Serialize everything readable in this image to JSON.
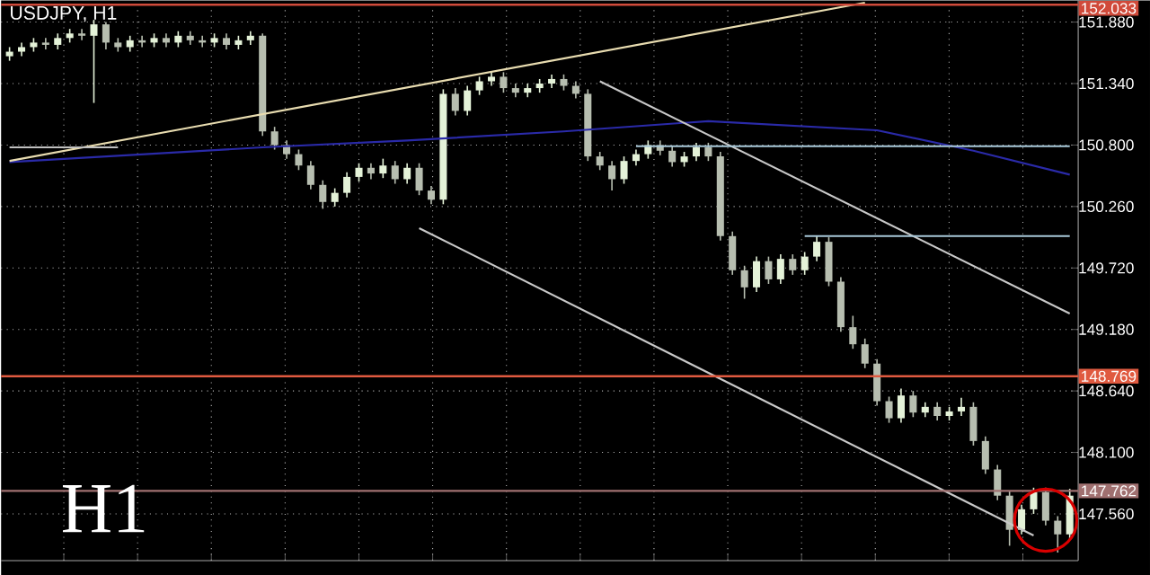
{
  "chart_data": {
    "type": "candlestick",
    "title": "USDJPY, H1",
    "annotations": [
      "H1"
    ],
    "colors": [
      "#e4f2d8",
      "#e4f2d8",
      "#e4f2d8",
      "#b7beb0",
      "#e4f2d8",
      "#e4f2d8",
      "#b7beb0",
      "#e4f2d8",
      "#b7beb0",
      "#b7beb0",
      "#e4f2d8",
      "#b7beb0",
      "#e4f2d8",
      "#b7beb0",
      "#e4f2d8",
      "#b7beb0",
      "#b7beb0",
      "#e4f2d8",
      "#b7beb0",
      "#e4f2d8",
      "#e4f2d8",
      "#b7beb0",
      "#b7beb0",
      "#b7beb0",
      "#b7beb0",
      "#b7beb0",
      "#b7beb0",
      "#e4f2d8",
      "#e4f2d8",
      "#e4f2d8",
      "#b7beb0",
      "#e4f2d8",
      "#b7beb0",
      "#e4f2d8",
      "#b7beb0",
      "#b7beb0",
      "#e4f2d8",
      "#b7beb0",
      "#e4f2d8",
      "#e4f2d8",
      "#e4f2d8",
      "#b7beb0",
      "#b7beb0",
      "#e4f2d8",
      "#e4f2d8",
      "#e4f2d8",
      "#b7beb0",
      "#b7beb0",
      "#b7beb0",
      "#b7beb0",
      "#b7beb0",
      "#e4f2d8",
      "#e4f2d8",
      "#e4f2d8",
      "#b7beb0",
      "#b7beb0",
      "#e4f2d8",
      "#e4f2d8",
      "#b7beb0",
      "#b7beb0",
      "#b7beb0",
      "#b7beb0",
      "#e4f2d8",
      "#b7beb0",
      "#e4f2d8",
      "#b7beb0",
      "#e4f2d8",
      "#e4f2d8",
      "#b7beb0",
      "#b7beb0",
      "#b7beb0",
      "#b7beb0",
      "#b7beb0",
      "#b7beb0",
      "#e4f2d8",
      "#b7beb0",
      "#e4f2d8",
      "#b7beb0",
      "#e4f2d8",
      "#e4f2d8",
      "#b7beb0",
      "#b7beb0",
      "#b7beb0",
      "#b7beb0",
      "#e4f2d8",
      "#e4f2d8",
      "#b7beb0",
      "#b7beb0",
      "#e4f2d8"
    ],
    "categories": [
      null,
      null,
      null,
      null,
      null,
      null,
      null,
      null,
      null,
      null,
      null,
      null,
      null,
      null,
      null,
      null,
      null,
      null,
      null,
      null,
      null,
      null,
      null,
      null,
      null,
      null,
      null,
      null,
      null,
      null,
      null,
      null,
      null,
      null,
      null,
      null,
      null,
      null,
      null,
      null,
      null,
      null,
      null,
      null,
      null,
      null,
      null,
      null,
      null,
      null,
      null,
      null,
      null,
      null,
      null,
      null,
      null,
      null,
      null,
      null,
      null,
      null,
      null,
      null,
      null,
      null,
      null,
      null,
      null,
      null,
      null,
      null,
      null,
      null,
      null,
      null,
      null,
      null,
      null,
      null,
      null,
      null,
      null,
      null,
      null,
      null,
      null,
      null,
      null
    ],
    "ohlc": [
      [
        151.58,
        151.66,
        151.54,
        151.62
      ],
      [
        151.62,
        151.7,
        151.58,
        151.66
      ],
      [
        151.66,
        151.74,
        151.62,
        151.7
      ],
      [
        151.7,
        151.74,
        151.64,
        151.68
      ],
      [
        151.68,
        151.78,
        151.64,
        151.74
      ],
      [
        151.74,
        151.82,
        151.7,
        151.78
      ],
      [
        151.78,
        151.82,
        151.72,
        151.76
      ],
      [
        151.76,
        151.9,
        151.17,
        151.86
      ],
      [
        151.86,
        151.88,
        151.64,
        151.7
      ],
      [
        151.7,
        151.74,
        151.62,
        151.66
      ],
      [
        151.66,
        151.76,
        151.62,
        151.72
      ],
      [
        151.72,
        151.76,
        151.66,
        151.7
      ],
      [
        151.7,
        151.78,
        151.66,
        151.74
      ],
      [
        151.74,
        151.78,
        151.66,
        151.7
      ],
      [
        151.7,
        151.8,
        151.66,
        151.76
      ],
      [
        151.76,
        151.8,
        151.68,
        151.72
      ],
      [
        151.72,
        151.76,
        151.66,
        151.7
      ],
      [
        151.7,
        151.78,
        151.66,
        151.74
      ],
      [
        151.74,
        151.78,
        151.64,
        151.68
      ],
      [
        151.68,
        151.76,
        151.64,
        151.72
      ],
      [
        151.72,
        151.8,
        151.68,
        151.76
      ],
      [
        151.76,
        151.78,
        150.88,
        150.92
      ],
      [
        150.92,
        150.96,
        150.76,
        150.8
      ],
      [
        150.8,
        150.84,
        150.68,
        150.72
      ],
      [
        150.72,
        150.76,
        150.58,
        150.62
      ],
      [
        150.62,
        150.66,
        150.41,
        150.45
      ],
      [
        150.45,
        150.49,
        150.24,
        150.3
      ],
      [
        150.3,
        150.42,
        150.26,
        150.38
      ],
      [
        150.38,
        150.56,
        150.34,
        150.52
      ],
      [
        150.52,
        150.64,
        150.48,
        150.6
      ],
      [
        150.6,
        150.64,
        150.5,
        150.55
      ],
      [
        150.55,
        150.68,
        150.51,
        150.62
      ],
      [
        150.62,
        150.66,
        150.46,
        150.5
      ],
      [
        150.5,
        150.64,
        150.46,
        150.6
      ],
      [
        150.6,
        150.64,
        150.36,
        150.4
      ],
      [
        150.4,
        150.44,
        150.28,
        150.32
      ],
      [
        150.32,
        151.29,
        150.28,
        151.25
      ],
      [
        151.25,
        151.3,
        151.06,
        151.1
      ],
      [
        151.1,
        151.32,
        151.06,
        151.28
      ],
      [
        151.28,
        151.4,
        151.24,
        151.36
      ],
      [
        151.36,
        151.44,
        151.32,
        151.4
      ],
      [
        151.4,
        151.44,
        151.26,
        151.3
      ],
      [
        151.3,
        151.34,
        151.22,
        151.26
      ],
      [
        151.26,
        151.34,
        151.22,
        151.3
      ],
      [
        151.3,
        151.38,
        151.26,
        151.34
      ],
      [
        151.34,
        151.42,
        151.3,
        151.38
      ],
      [
        151.38,
        151.42,
        151.28,
        151.32
      ],
      [
        151.32,
        151.36,
        151.21,
        151.25
      ],
      [
        151.25,
        151.29,
        150.66,
        150.7
      ],
      [
        150.7,
        150.74,
        150.58,
        150.62
      ],
      [
        150.62,
        150.66,
        150.4,
        150.5
      ],
      [
        150.5,
        150.7,
        150.46,
        150.66
      ],
      [
        150.66,
        150.76,
        150.62,
        150.72
      ],
      [
        150.72,
        150.84,
        150.68,
        150.8
      ],
      [
        150.8,
        150.84,
        150.71,
        150.75
      ],
      [
        150.75,
        150.79,
        150.61,
        150.65
      ],
      [
        150.65,
        150.74,
        150.61,
        150.7
      ],
      [
        150.7,
        150.82,
        150.66,
        150.78
      ],
      [
        150.78,
        150.82,
        150.66,
        150.7
      ],
      [
        150.7,
        150.74,
        149.96,
        150.0
      ],
      [
        150.0,
        150.04,
        149.66,
        149.7
      ],
      [
        149.7,
        149.74,
        149.45,
        149.55
      ],
      [
        149.55,
        149.82,
        149.51,
        149.78
      ],
      [
        149.78,
        149.82,
        149.58,
        149.62
      ],
      [
        149.62,
        149.84,
        149.58,
        149.8
      ],
      [
        149.8,
        149.84,
        149.66,
        149.7
      ],
      [
        149.7,
        149.86,
        149.66,
        149.82
      ],
      [
        149.82,
        150.0,
        149.78,
        149.95
      ],
      [
        149.95,
        149.99,
        149.56,
        149.6
      ],
      [
        149.6,
        149.64,
        149.16,
        149.2
      ],
      [
        149.2,
        149.3,
        149.01,
        149.05
      ],
      [
        149.05,
        149.1,
        148.84,
        148.88
      ],
      [
        148.88,
        148.92,
        148.51,
        148.55
      ],
      [
        148.55,
        148.59,
        148.36,
        148.4
      ],
      [
        148.4,
        148.66,
        148.36,
        148.6
      ],
      [
        148.6,
        148.64,
        148.41,
        148.45
      ],
      [
        148.45,
        148.54,
        148.41,
        148.5
      ],
      [
        148.5,
        148.54,
        148.38,
        148.42
      ],
      [
        148.42,
        148.5,
        148.38,
        148.46
      ],
      [
        148.46,
        148.58,
        148.42,
        148.5
      ],
      [
        148.5,
        148.54,
        148.16,
        148.2
      ],
      [
        148.2,
        148.24,
        147.91,
        147.95
      ],
      [
        147.95,
        147.99,
        147.68,
        147.72
      ],
      [
        147.72,
        147.76,
        147.28,
        147.42
      ],
      [
        147.42,
        147.64,
        147.38,
        147.6
      ],
      [
        147.6,
        147.79,
        147.56,
        147.75
      ],
      [
        147.75,
        147.79,
        147.46,
        147.5
      ],
      [
        147.5,
        147.54,
        147.22,
        147.38
      ],
      [
        147.38,
        147.78,
        147.34,
        147.72
      ]
    ],
    "series": [
      {
        "type": "line",
        "color": "#2a2aa8",
        "values": [
          150.65,
          null,
          null,
          null,
          null,
          null,
          null,
          null,
          null,
          null,
          null,
          null,
          null,
          null,
          null,
          null,
          null,
          null,
          null,
          null,
          null,
          150.78,
          null,
          null,
          null,
          null,
          null,
          null,
          null,
          null,
          null,
          null,
          null,
          150.84,
          null,
          null,
          null,
          null,
          null,
          null,
          null,
          null,
          null,
          null,
          null,
          null,
          150.92,
          null,
          null,
          null,
          null,
          null,
          null,
          null,
          null,
          null,
          null,
          null,
          151.01,
          null,
          null,
          null,
          null,
          null,
          null,
          null,
          null,
          null,
          null,
          null,
          null,
          null,
          150.93,
          null,
          null,
          null,
          null,
          null,
          null,
          null,
          150.75,
          null,
          null,
          null,
          null,
          null,
          null,
          null,
          150.54
        ]
      },
      {
        "type": "line",
        "color": "#e8dcb0",
        "values": [
          150.66,
          null,
          null,
          null,
          null,
          null,
          null,
          null,
          null,
          null,
          null,
          null,
          null,
          null,
          null,
          null,
          null,
          null,
          null,
          null,
          null,
          null,
          null,
          null,
          null,
          null,
          null,
          null,
          null,
          null,
          null,
          null,
          null,
          null,
          null,
          null,
          null,
          null,
          null,
          null,
          null,
          null,
          null,
          null,
          null,
          null,
          null,
          null,
          null,
          null,
          null,
          null,
          null,
          null,
          null,
          null,
          null,
          null,
          null,
          null,
          null,
          null,
          null,
          null,
          null,
          null,
          null,
          null,
          null,
          null,
          null,
          152.05,
          null,
          null,
          null,
          null,
          null,
          null,
          null,
          null,
          null,
          null,
          null,
          null,
          null,
          null,
          null,
          null,
          null
        ]
      },
      {
        "type": "line",
        "color": "#c8c8c8",
        "values": [
          null,
          null,
          null,
          null,
          null,
          null,
          null,
          null,
          null,
          null,
          null,
          null,
          null,
          null,
          null,
          null,
          null,
          null,
          null,
          null,
          null,
          null,
          null,
          null,
          null,
          null,
          null,
          null,
          null,
          null,
          null,
          null,
          null,
          null,
          null,
          null,
          null,
          null,
          null,
          null,
          null,
          null,
          null,
          null,
          null,
          null,
          null,
          null,
          null,
          151.36,
          null,
          null,
          null,
          null,
          null,
          null,
          null,
          null,
          null,
          null,
          null,
          null,
          null,
          null,
          null,
          null,
          null,
          null,
          null,
          null,
          null,
          null,
          null,
          null,
          null,
          null,
          null,
          null,
          null,
          null,
          null,
          null,
          null,
          null,
          null,
          null,
          null,
          null,
          149.32
        ]
      },
      {
        "type": "line",
        "color": "#c8c8c8",
        "values": [
          null,
          null,
          null,
          null,
          null,
          null,
          null,
          null,
          null,
          null,
          null,
          null,
          null,
          null,
          null,
          null,
          null,
          null,
          null,
          null,
          null,
          null,
          null,
          null,
          null,
          null,
          null,
          null,
          null,
          null,
          null,
          null,
          null,
          null,
          150.07,
          null,
          null,
          null,
          null,
          null,
          null,
          null,
          null,
          null,
          null,
          null,
          null,
          null,
          null,
          null,
          null,
          null,
          null,
          null,
          null,
          null,
          null,
          null,
          null,
          null,
          null,
          null,
          null,
          null,
          null,
          null,
          null,
          null,
          null,
          null,
          null,
          null,
          null,
          null,
          null,
          null,
          null,
          null,
          null,
          null,
          null,
          null,
          null,
          null,
          null,
          147.37,
          null,
          null,
          null
        ]
      },
      {
        "type": "line",
        "color": "#a8c8d8",
        "values": [
          null,
          null,
          null,
          null,
          null,
          null,
          null,
          null,
          null,
          null,
          null,
          null,
          null,
          null,
          null,
          null,
          null,
          null,
          null,
          null,
          null,
          null,
          null,
          null,
          null,
          null,
          null,
          null,
          null,
          null,
          null,
          null,
          null,
          null,
          null,
          null,
          null,
          null,
          null,
          null,
          null,
          null,
          null,
          null,
          null,
          null,
          null,
          null,
          null,
          null,
          null,
          null,
          150.79,
          null,
          null,
          null,
          null,
          null,
          null,
          null,
          null,
          null,
          null,
          null,
          null,
          null,
          null,
          null,
          null,
          null,
          null,
          null,
          null,
          null,
          null,
          null,
          null,
          null,
          null,
          null,
          null,
          null,
          null,
          null,
          null,
          null,
          null,
          null,
          150.79
        ]
      },
      {
        "type": "line",
        "color": "#a8c8d8",
        "values": [
          null,
          null,
          null,
          null,
          null,
          null,
          null,
          null,
          null,
          null,
          null,
          null,
          null,
          null,
          null,
          null,
          null,
          null,
          null,
          null,
          null,
          null,
          null,
          null,
          null,
          null,
          null,
          null,
          null,
          null,
          null,
          null,
          null,
          null,
          null,
          null,
          null,
          null,
          null,
          null,
          null,
          null,
          null,
          null,
          null,
          null,
          null,
          null,
          null,
          null,
          null,
          null,
          null,
          null,
          null,
          null,
          null,
          null,
          null,
          null,
          null,
          null,
          null,
          null,
          null,
          null,
          150.0,
          null,
          null,
          null,
          null,
          null,
          null,
          null,
          null,
          null,
          null,
          null,
          null,
          null,
          null,
          null,
          null,
          null,
          null,
          null,
          null,
          null,
          150.0
        ]
      },
      {
        "type": "line",
        "color": "#c0c0c0",
        "values": [
          150.78,
          null,
          null,
          null,
          null,
          null,
          null,
          null,
          null,
          150.78,
          null,
          null,
          null,
          null,
          null,
          null,
          null,
          null,
          null,
          null,
          null,
          null,
          null,
          null,
          null,
          null,
          null,
          null,
          null,
          null,
          null,
          null,
          null,
          null,
          null,
          null,
          null,
          null,
          null,
          null,
          null,
          null,
          null,
          null,
          null,
          null,
          null,
          null,
          null,
          null,
          null,
          null,
          null,
          null,
          null,
          null,
          null,
          null,
          null,
          null,
          null,
          null,
          null,
          null,
          null,
          null,
          null,
          null,
          null,
          null,
          null,
          null,
          null,
          null,
          null,
          null,
          null,
          null,
          null,
          null,
          null,
          null,
          null,
          null,
          null,
          null,
          null,
          null,
          null
        ]
      }
    ],
    "ylim": [
      147.15,
      152.07
    ],
    "yticks": [
      {
        "value": 147.56,
        "label": "147.560"
      },
      {
        "value": 148.1,
        "label": "148.100"
      },
      {
        "value": 148.64,
        "label": "148.640"
      },
      {
        "value": 149.18,
        "label": "149.180"
      },
      {
        "value": 149.72,
        "label": "149.720"
      },
      {
        "value": 150.26,
        "label": "150.260"
      },
      {
        "value": 150.8,
        "label": "150.800"
      },
      {
        "value": 151.34,
        "label": "151.340"
      },
      {
        "value": 151.88,
        "label": "151.880"
      }
    ],
    "tick_labels": "y",
    "grid": true,
    "ref_lines": [
      {
        "axis": "y",
        "value": 152.033,
        "label": "152.033",
        "color": "#d04a3a"
      },
      {
        "axis": "y",
        "value": 148.769,
        "label": "148.769",
        "color": "#e05a40"
      },
      {
        "axis": "y",
        "value": 147.762,
        "label": "147.762",
        "color": "#a07070"
      }
    ]
  }
}
